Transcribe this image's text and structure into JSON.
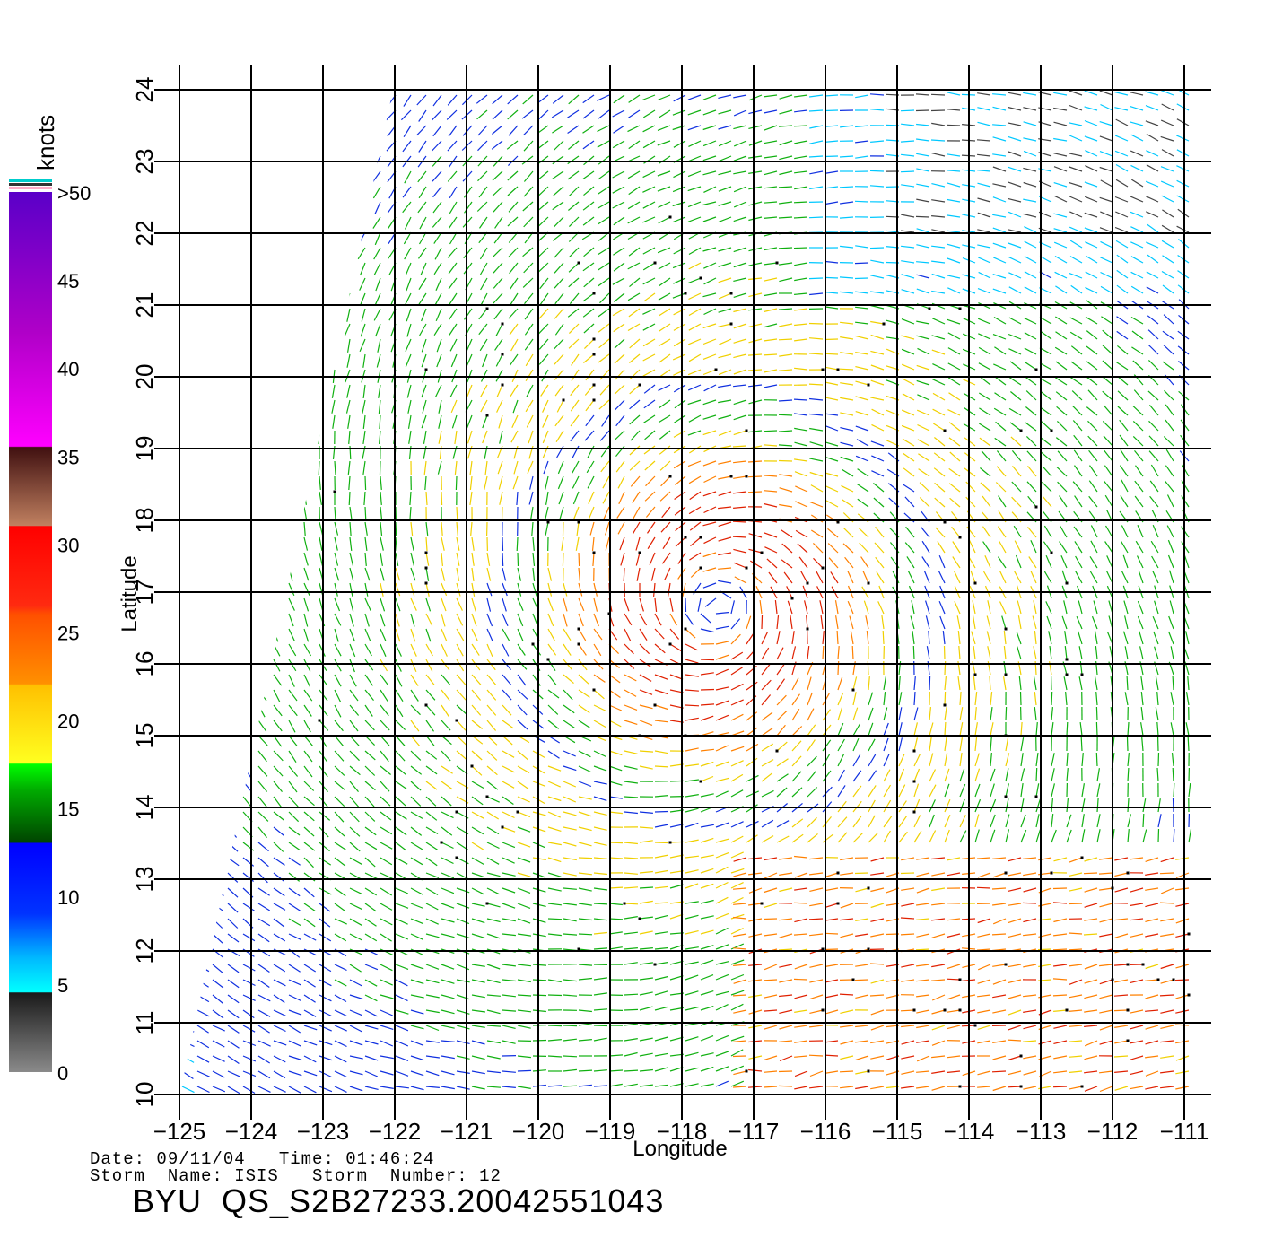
{
  "title": "",
  "map": {
    "lon_range": [
      -125,
      -110.4
    ],
    "lat_range": [
      10,
      24
    ],
    "lon_ticks": [
      -125,
      -124,
      -123,
      -122,
      -121,
      -120,
      -119,
      -118,
      -117,
      -116,
      -115,
      -114,
      -113,
      -112,
      -111
    ],
    "lat_ticks": [
      10,
      11,
      12,
      13,
      14,
      15,
      16,
      17,
      18,
      19,
      20,
      21,
      22,
      23,
      24
    ],
    "xlabel": "Longitude",
    "ylabel": "Latitude",
    "grid": true,
    "swath_left_edge": [
      [
        -124.9,
        10
      ],
      [
        -122,
        24
      ]
    ],
    "features": [
      {
        "type": "wind-barb-field",
        "description": "QuikSCAT wind vectors colored by speed"
      },
      {
        "type": "cyclone-center",
        "name": "ISIS",
        "approx_lon": -117.5,
        "approx_lat": 16.8
      }
    ]
  },
  "colorbar": {
    "unit_label": "knots",
    "tick_labels": [
      "0",
      "5",
      "10",
      "15",
      "20",
      "25",
      "30",
      "35",
      "40",
      "45",
      ">50"
    ],
    "colors": {
      "0-5": "#8a8a8a",
      "5-10": "#00b8ff",
      "10-15": "#0033ff",
      "15-20": "#00c000",
      "20-25": "#ffd000",
      "25-30": "#ff6a00",
      "30-35": "#ff1a00",
      "35-40": "#8a4a2a",
      "40-45": "#ee00ee",
      "45-50": "#8a00cc"
    }
  },
  "info": {
    "line1": "Date: 09/11/04   Time: 01:46:24",
    "line2": "Storm  Name: ISIS   Storm  Number: 12",
    "product_id": "BYU  QS_S2B27233.20042551043"
  }
}
